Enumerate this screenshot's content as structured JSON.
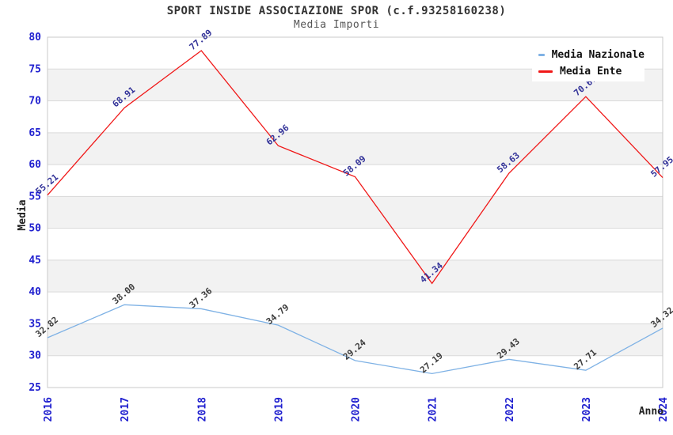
{
  "header": {
    "title": "SPORT INSIDE ASSOCIAZIONE SPOR (c.f.93258160238)",
    "subtitle": "Media Importi"
  },
  "chart_data": {
    "type": "line",
    "title": "SPORT INSIDE ASSOCIAZIONE SPOR (c.f.93258160238)",
    "subtitle": "Media Importi",
    "categories": [
      "2016",
      "2017",
      "2018",
      "2019",
      "2020",
      "2021",
      "2022",
      "2023",
      "2024"
    ],
    "series": [
      {
        "name": "Media Nazionale",
        "color": "#7fb2e5",
        "label_color": "#3d3d3d",
        "values": [
          32.82,
          38.0,
          37.36,
          34.79,
          29.24,
          27.19,
          29.43,
          27.71,
          34.32
        ]
      },
      {
        "name": "Media Ente",
        "color": "#f01818",
        "label_color": "#333399",
        "values": [
          55.21,
          68.91,
          77.89,
          62.96,
          58.09,
          41.34,
          58.63,
          70.67,
          57.95
        ]
      }
    ],
    "xlabel": "Anno",
    "ylabel": "Media",
    "ylim": [
      25,
      80
    ],
    "ytick_step": 5,
    "grid": "alternating-horizontal-bands",
    "legend_position": "top-right",
    "colors": {
      "band": "#f2f2f2",
      "gridline": "#d9d9d9",
      "plot_border": "#c8c8c8",
      "tick_label": "#2020cf",
      "title": "#333333",
      "subtitle": "#555555"
    }
  }
}
